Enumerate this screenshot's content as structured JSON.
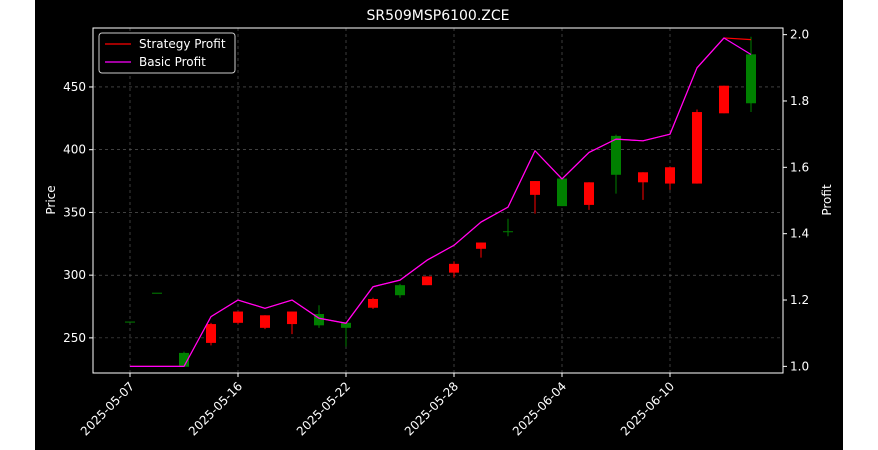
{
  "chart_data": {
    "type": "candlestick",
    "title": "SR509MSP6100.ZCE",
    "ylabel_left": "Price",
    "ylabel_right": "Profit",
    "ylim_left": [
      222,
      497
    ],
    "ylim_right": [
      0.98,
      2.02
    ],
    "yticks_left": [
      "250",
      "300",
      "350",
      "400",
      "450"
    ],
    "yticks_right": [
      "1.0",
      "1.2",
      "1.4",
      "1.6",
      "1.8",
      "2.0"
    ],
    "xticks": [
      "2025-05-07",
      "2025-05-16",
      "2025-05-22",
      "2025-05-28",
      "2025-06-04",
      "2025-06-10"
    ],
    "xtick_index": [
      0,
      4,
      8,
      12,
      16,
      20
    ],
    "grid": true,
    "legend_position": "upper-left",
    "up_color": "#008000",
    "down_color": "#ff0000",
    "candles": [
      {
        "i": 0,
        "open": 263,
        "high": 263,
        "low": 263,
        "close": 263
      },
      {
        "i": 1,
        "open": 286,
        "high": 286,
        "low": 286,
        "close": 286
      },
      {
        "i": 2,
        "open": 227,
        "high": 239,
        "low": 227,
        "close": 238
      },
      {
        "i": 3,
        "open": 261,
        "high": 262,
        "low": 244,
        "close": 246
      },
      {
        "i": 4,
        "open": 271,
        "high": 271,
        "low": 261,
        "close": 262
      },
      {
        "i": 5,
        "open": 268,
        "high": 268,
        "low": 257,
        "close": 258
      },
      {
        "i": 6,
        "open": 271,
        "high": 271,
        "low": 253,
        "close": 261
      },
      {
        "i": 7,
        "open": 260,
        "high": 276,
        "low": 258,
        "close": 269
      },
      {
        "i": 8,
        "open": 258,
        "high": 262,
        "low": 243,
        "close": 262
      },
      {
        "i": 9,
        "open": 281,
        "high": 282,
        "low": 273,
        "close": 274
      },
      {
        "i": 10,
        "open": 284,
        "high": 293,
        "low": 282,
        "close": 292
      },
      {
        "i": 11,
        "open": 299,
        "high": 299,
        "low": 292,
        "close": 292
      },
      {
        "i": 12,
        "open": 309,
        "high": 311,
        "low": 298,
        "close": 302
      },
      {
        "i": 13,
        "open": 326,
        "high": 326,
        "low": 314,
        "close": 321
      },
      {
        "i": 14,
        "open": 335,
        "high": 345,
        "low": 331,
        "close": 335
      },
      {
        "i": 15,
        "open": 375,
        "high": 375,
        "low": 349,
        "close": 364
      },
      {
        "i": 16,
        "open": 355,
        "high": 377,
        "low": 355,
        "close": 377
      },
      {
        "i": 17,
        "open": 374,
        "high": 374,
        "low": 352,
        "close": 356
      },
      {
        "i": 18,
        "open": 380,
        "high": 412,
        "low": 365,
        "close": 411
      },
      {
        "i": 19,
        "open": 382,
        "high": 382,
        "low": 360,
        "close": 374
      },
      {
        "i": 20,
        "open": 386,
        "high": 386,
        "low": 368,
        "close": 373
      },
      {
        "i": 21,
        "open": 430,
        "high": 432,
        "low": 373,
        "close": 373
      },
      {
        "i": 22,
        "open": 451,
        "high": 451,
        "low": 429,
        "close": 429
      },
      {
        "i": 23,
        "open": 437,
        "high": 490,
        "low": 430,
        "close": 476
      }
    ],
    "series": [
      {
        "name": "Strategy Profit",
        "color": "#ff0000",
        "values": [
          1.0,
          1.0,
          1.0,
          1.15,
          1.2,
          1.175,
          1.2,
          1.145,
          1.13,
          1.24,
          1.26,
          1.32,
          1.365,
          1.435,
          1.48,
          1.65,
          1.565,
          1.645,
          1.685,
          1.68,
          1.7,
          1.9,
          1.99,
          1.985
        ]
      },
      {
        "name": "Basic Profit",
        "color": "#ff00ff",
        "values": [
          1.0,
          1.0,
          1.0,
          1.15,
          1.2,
          1.175,
          1.2,
          1.145,
          1.13,
          1.24,
          1.26,
          1.32,
          1.365,
          1.435,
          1.48,
          1.65,
          1.565,
          1.645,
          1.685,
          1.68,
          1.7,
          1.9,
          1.99,
          1.94
        ]
      }
    ]
  }
}
